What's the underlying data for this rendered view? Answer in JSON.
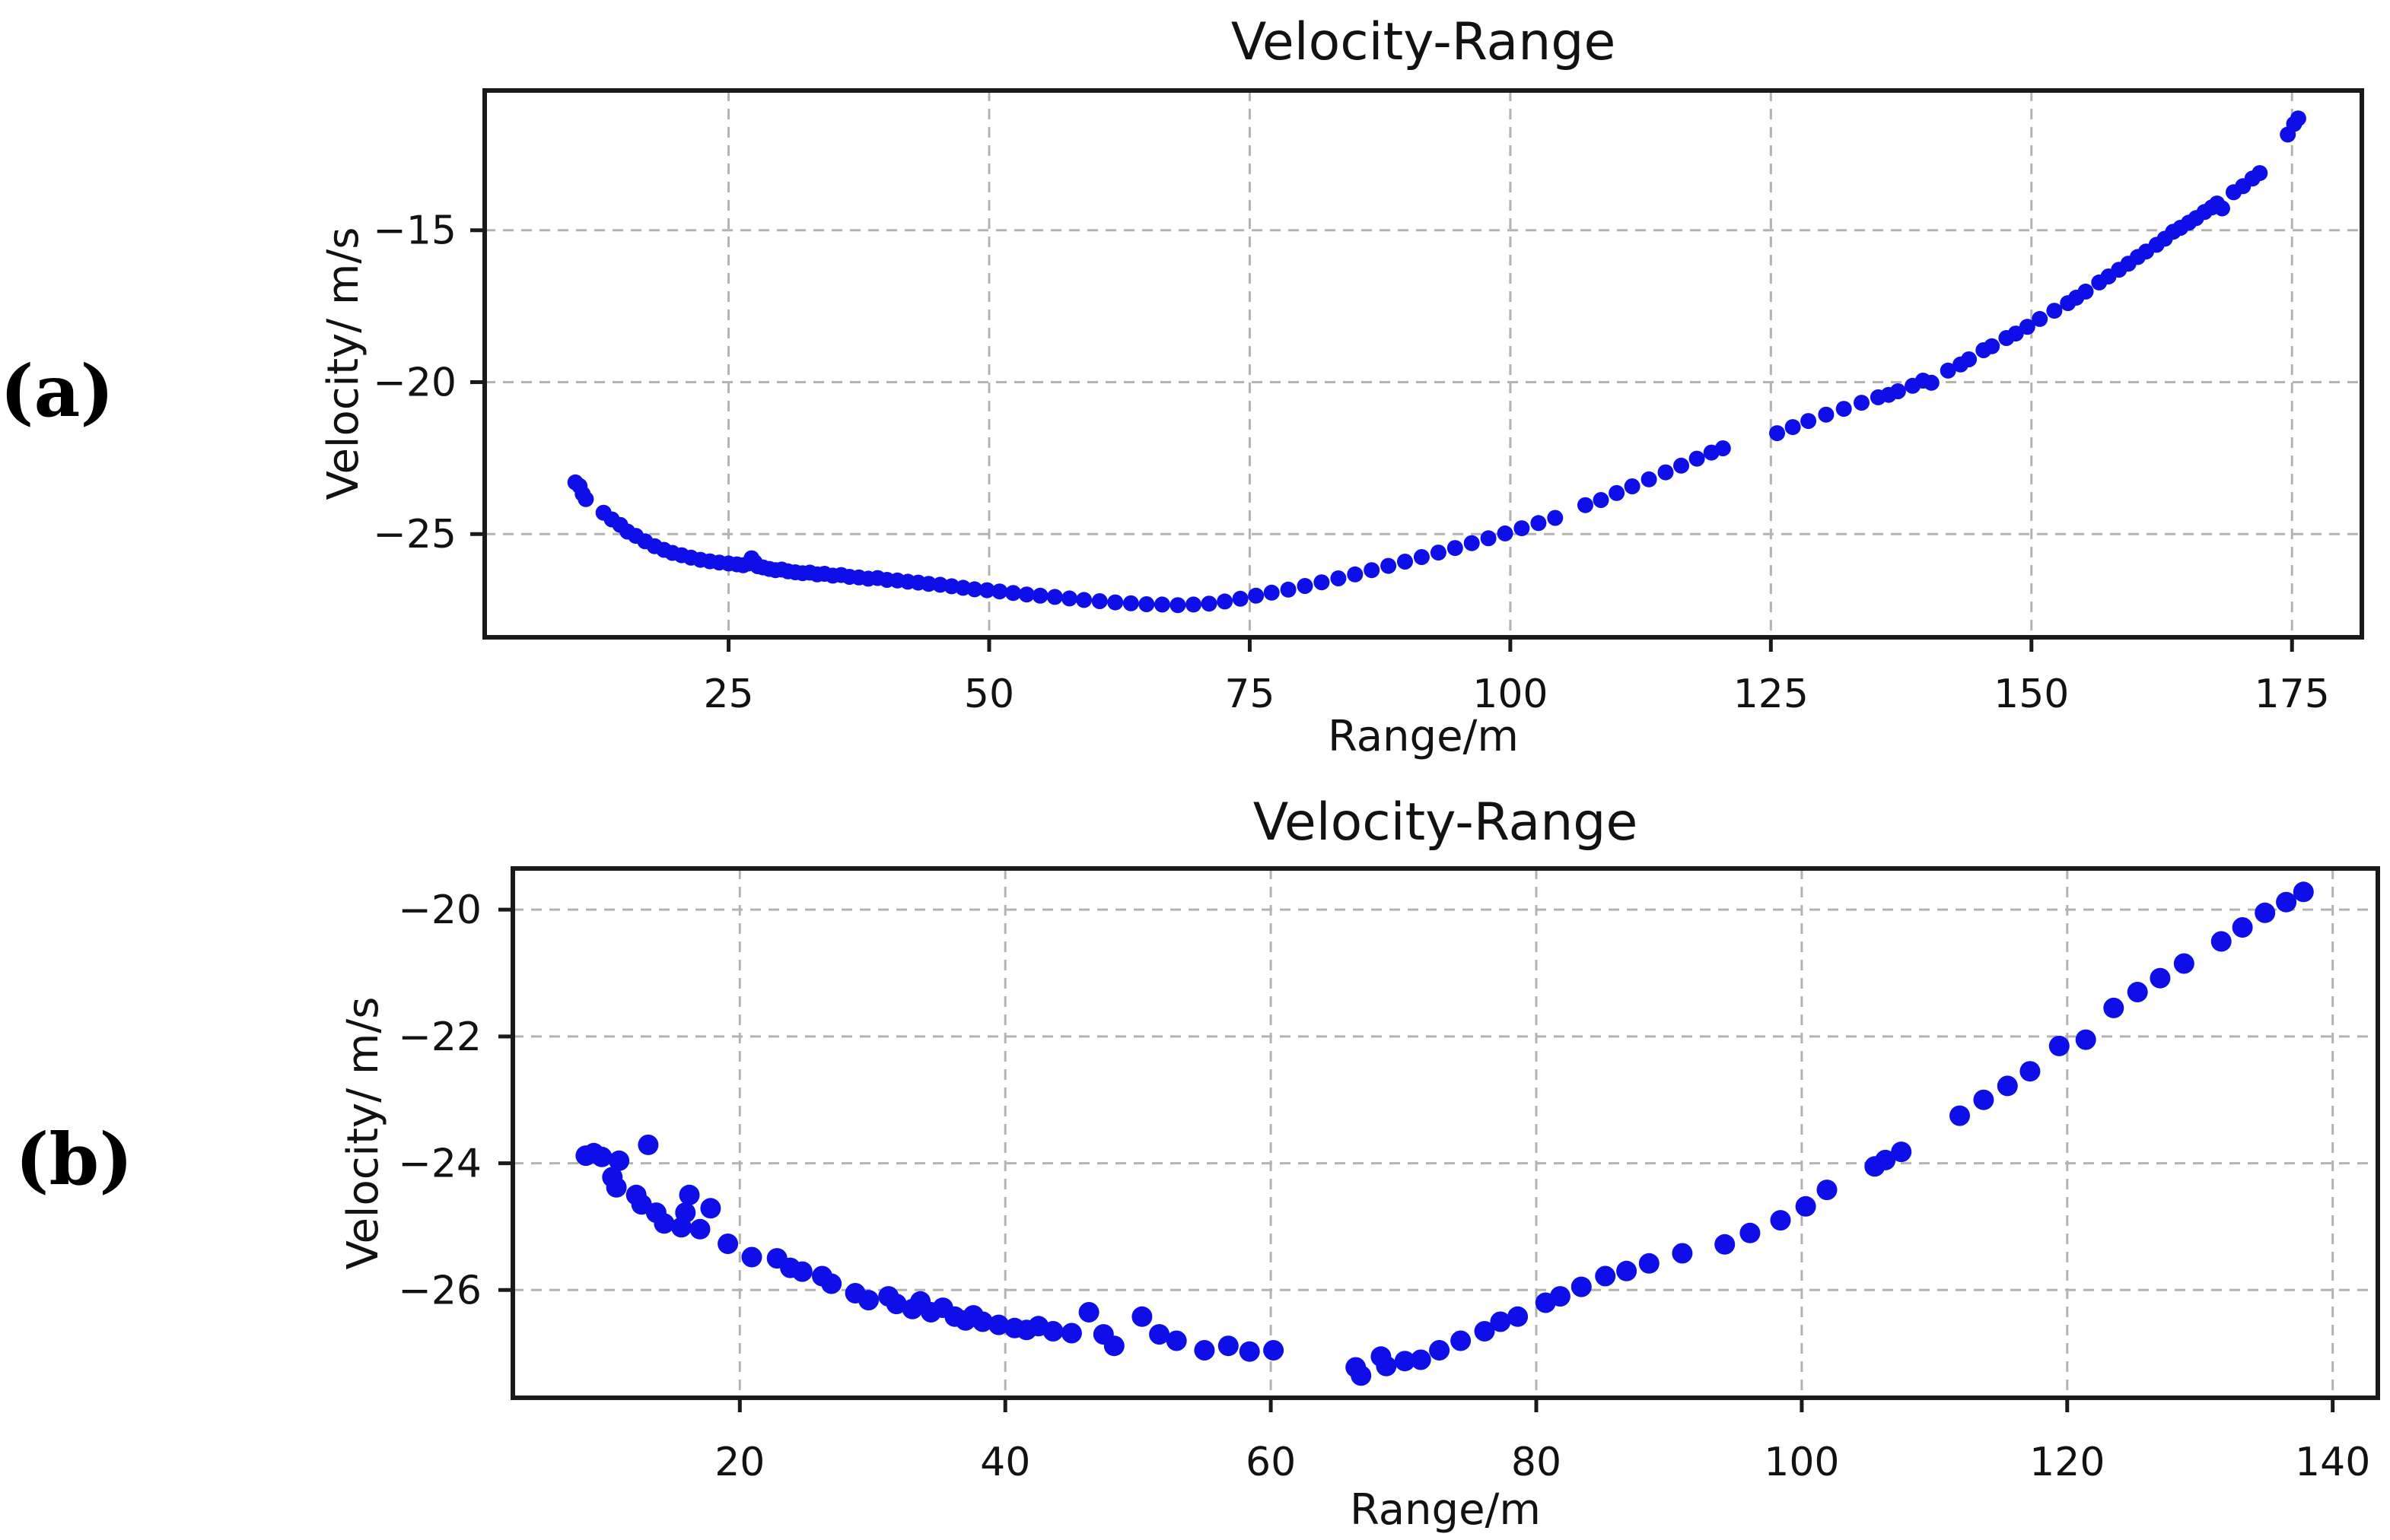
{
  "figure": {
    "background": "#ffffff",
    "text_color": "#121212",
    "marker_color": "#0e0ee8",
    "grid_color": "#b3b3b3",
    "spine_color": "#1a1a1a"
  },
  "panels": [
    {
      "label": "(a)"
    },
    {
      "label": "(b)"
    }
  ],
  "chart_data": [
    {
      "type": "scatter",
      "title": "Velocity-Range",
      "xlabel": "Range/m",
      "ylabel": "Velocity/ m/s",
      "legend": "none",
      "grid": true,
      "marker": "circle",
      "marker_color": "#0e0ee8",
      "xlim": [
        1.6,
        181.7
      ],
      "ylim": [
        -28.4,
        -10.4
      ],
      "x_ticks": [
        25,
        50,
        75,
        100,
        125,
        150,
        175
      ],
      "y_ticks": [
        -25,
        -20,
        -15
      ],
      "points": [
        [
          10.3,
          -23.3
        ],
        [
          10.7,
          -23.42
        ],
        [
          11.0,
          -23.68
        ],
        [
          11.3,
          -23.85
        ],
        [
          13.0,
          -24.3
        ],
        [
          13.8,
          -24.52
        ],
        [
          14.6,
          -24.7
        ],
        [
          15.3,
          -24.92
        ],
        [
          16.1,
          -25.06
        ],
        [
          17.0,
          -25.24
        ],
        [
          17.9,
          -25.4
        ],
        [
          18.8,
          -25.52
        ],
        [
          19.6,
          -25.62
        ],
        [
          20.5,
          -25.7
        ],
        [
          21.4,
          -25.78
        ],
        [
          22.3,
          -25.85
        ],
        [
          23.2,
          -25.9
        ],
        [
          24.1,
          -25.94
        ],
        [
          25.0,
          -25.97
        ],
        [
          25.8,
          -26.0
        ],
        [
          26.4,
          -26.03
        ],
        [
          26.9,
          -25.97
        ],
        [
          27.2,
          -25.8
        ],
        [
          27.5,
          -25.93
        ],
        [
          27.8,
          -26.06
        ],
        [
          28.3,
          -26.1
        ],
        [
          28.9,
          -26.15
        ],
        [
          29.5,
          -26.19
        ],
        [
          30.1,
          -26.17
        ],
        [
          30.7,
          -26.23
        ],
        [
          31.4,
          -26.26
        ],
        [
          32.1,
          -26.29
        ],
        [
          32.8,
          -26.27
        ],
        [
          33.5,
          -26.33
        ],
        [
          34.2,
          -26.31
        ],
        [
          35.0,
          -26.37
        ],
        [
          35.8,
          -26.35
        ],
        [
          36.6,
          -26.41
        ],
        [
          37.5,
          -26.43
        ],
        [
          38.4,
          -26.47
        ],
        [
          39.3,
          -26.45
        ],
        [
          40.2,
          -26.51
        ],
        [
          41.2,
          -26.53
        ],
        [
          42.2,
          -26.57
        ],
        [
          43.2,
          -26.6
        ],
        [
          44.2,
          -26.64
        ],
        [
          45.3,
          -26.67
        ],
        [
          46.4,
          -26.72
        ],
        [
          47.5,
          -26.77
        ],
        [
          48.6,
          -26.82
        ],
        [
          49.8,
          -26.85
        ],
        [
          51.0,
          -26.89
        ],
        [
          52.3,
          -26.94
        ],
        [
          53.6,
          -26.99
        ],
        [
          54.9,
          -27.03
        ],
        [
          56.3,
          -27.07
        ],
        [
          57.7,
          -27.12
        ],
        [
          59.1,
          -27.17
        ],
        [
          60.6,
          -27.21
        ],
        [
          62.1,
          -27.25
        ],
        [
          63.6,
          -27.28
        ],
        [
          65.1,
          -27.31
        ],
        [
          66.6,
          -27.32
        ],
        [
          68.1,
          -27.34
        ],
        [
          69.6,
          -27.32
        ],
        [
          71.1,
          -27.29
        ],
        [
          72.6,
          -27.22
        ],
        [
          74.1,
          -27.13
        ],
        [
          75.6,
          -27.03
        ],
        [
          77.1,
          -26.93
        ],
        [
          78.7,
          -26.83
        ],
        [
          80.3,
          -26.71
        ],
        [
          81.9,
          -26.59
        ],
        [
          83.5,
          -26.46
        ],
        [
          85.1,
          -26.33
        ],
        [
          86.7,
          -26.19
        ],
        [
          88.3,
          -26.05
        ],
        [
          89.9,
          -25.91
        ],
        [
          91.5,
          -25.76
        ],
        [
          93.1,
          -25.61
        ],
        [
          94.7,
          -25.46
        ],
        [
          96.3,
          -25.3
        ],
        [
          97.9,
          -25.14
        ],
        [
          99.5,
          -24.98
        ],
        [
          101.1,
          -24.81
        ],
        [
          102.7,
          -24.64
        ],
        [
          104.3,
          -24.47
        ],
        [
          107.2,
          -24.05
        ],
        [
          108.7,
          -23.88
        ],
        [
          110.2,
          -23.65
        ],
        [
          111.7,
          -23.43
        ],
        [
          113.3,
          -23.2
        ],
        [
          114.9,
          -22.97
        ],
        [
          116.4,
          -22.75
        ],
        [
          117.9,
          -22.52
        ],
        [
          119.3,
          -22.32
        ],
        [
          120.4,
          -22.18
        ],
        [
          125.6,
          -21.68
        ],
        [
          127.1,
          -21.48
        ],
        [
          128.6,
          -21.28
        ],
        [
          130.3,
          -21.07
        ],
        [
          132.0,
          -20.88
        ],
        [
          133.7,
          -20.68
        ],
        [
          135.3,
          -20.5
        ],
        [
          136.3,
          -20.42
        ],
        [
          137.2,
          -20.3
        ],
        [
          138.6,
          -20.12
        ],
        [
          139.6,
          -19.95
        ],
        [
          140.4,
          -20.02
        ],
        [
          142.0,
          -19.62
        ],
        [
          143.2,
          -19.42
        ],
        [
          144.0,
          -19.25
        ],
        [
          145.4,
          -18.95
        ],
        [
          146.2,
          -18.82
        ],
        [
          147.6,
          -18.55
        ],
        [
          148.5,
          -18.4
        ],
        [
          149.6,
          -18.18
        ],
        [
          150.8,
          -17.92
        ],
        [
          152.2,
          -17.65
        ],
        [
          153.5,
          -17.4
        ],
        [
          154.3,
          -17.22
        ],
        [
          155.2,
          -17.02
        ],
        [
          156.5,
          -16.72
        ],
        [
          157.4,
          -16.52
        ],
        [
          158.4,
          -16.3
        ],
        [
          159.3,
          -16.1
        ],
        [
          160.2,
          -15.88
        ],
        [
          161.0,
          -15.7
        ],
        [
          162.0,
          -15.48
        ],
        [
          162.8,
          -15.28
        ],
        [
          163.6,
          -15.05
        ],
        [
          164.3,
          -14.92
        ],
        [
          165.1,
          -14.75
        ],
        [
          165.8,
          -14.6
        ],
        [
          166.6,
          -14.4
        ],
        [
          167.3,
          -14.25
        ],
        [
          167.8,
          -14.12
        ],
        [
          168.3,
          -14.28
        ],
        [
          169.4,
          -13.75
        ],
        [
          170.3,
          -13.55
        ],
        [
          171.2,
          -13.3
        ],
        [
          171.9,
          -13.12
        ],
        [
          174.6,
          -11.85
        ],
        [
          175.2,
          -11.5
        ],
        [
          175.6,
          -11.32
        ]
      ]
    },
    {
      "type": "scatter",
      "title": "Velocity-Range",
      "xlabel": "Range/m",
      "ylabel": "Velocity/ m/s",
      "legend": "none",
      "grid": true,
      "marker": "circle",
      "marker_color": "#0e0ee8",
      "xlim": [
        2.9,
        143.4
      ],
      "ylim": [
        -27.7,
        -19.35
      ],
      "x_ticks": [
        20,
        40,
        60,
        80,
        100,
        120,
        140
      ],
      "y_ticks": [
        -26,
        -24,
        -22,
        -20
      ],
      "points": [
        [
          8.4,
          -23.88
        ],
        [
          9.0,
          -23.84
        ],
        [
          9.6,
          -23.9
        ],
        [
          10.9,
          -23.96
        ],
        [
          10.4,
          -24.22
        ],
        [
          10.7,
          -24.38
        ],
        [
          12.2,
          -24.5
        ],
        [
          12.6,
          -24.65
        ],
        [
          13.1,
          -23.71
        ],
        [
          13.7,
          -24.78
        ],
        [
          14.3,
          -24.95
        ],
        [
          15.6,
          -25.01
        ],
        [
          15.9,
          -24.78
        ],
        [
          16.2,
          -24.5
        ],
        [
          17.0,
          -25.04
        ],
        [
          17.8,
          -24.71
        ],
        [
          19.1,
          -25.27
        ],
        [
          20.9,
          -25.48
        ],
        [
          22.8,
          -25.5
        ],
        [
          23.8,
          -25.65
        ],
        [
          24.7,
          -25.71
        ],
        [
          26.2,
          -25.78
        ],
        [
          26.9,
          -25.9
        ],
        [
          28.7,
          -26.05
        ],
        [
          29.7,
          -26.16
        ],
        [
          31.2,
          -26.1
        ],
        [
          31.8,
          -26.22
        ],
        [
          33.0,
          -26.3
        ],
        [
          33.6,
          -26.18
        ],
        [
          34.4,
          -26.35
        ],
        [
          35.3,
          -26.28
        ],
        [
          36.2,
          -26.42
        ],
        [
          37.0,
          -26.48
        ],
        [
          37.6,
          -26.4
        ],
        [
          38.3,
          -26.5
        ],
        [
          39.5,
          -26.55
        ],
        [
          40.7,
          -26.6
        ],
        [
          41.6,
          -26.63
        ],
        [
          42.5,
          -26.57
        ],
        [
          43.6,
          -26.65
        ],
        [
          45.0,
          -26.68
        ],
        [
          46.3,
          -26.35
        ],
        [
          47.4,
          -26.7
        ],
        [
          48.2,
          -26.88
        ],
        [
          50.3,
          -26.42
        ],
        [
          51.6,
          -26.7
        ],
        [
          52.9,
          -26.8
        ],
        [
          55.0,
          -26.95
        ],
        [
          56.8,
          -26.88
        ],
        [
          58.4,
          -26.97
        ],
        [
          60.2,
          -26.95
        ],
        [
          66.4,
          -27.22
        ],
        [
          66.8,
          -27.35
        ],
        [
          68.3,
          -27.05
        ],
        [
          68.7,
          -27.2
        ],
        [
          70.1,
          -27.12
        ],
        [
          71.3,
          -27.1
        ],
        [
          72.7,
          -26.95
        ],
        [
          74.3,
          -26.8
        ],
        [
          76.1,
          -26.65
        ],
        [
          77.3,
          -26.5
        ],
        [
          78.6,
          -26.42
        ],
        [
          80.7,
          -26.2
        ],
        [
          81.8,
          -26.1
        ],
        [
          83.4,
          -25.95
        ],
        [
          85.2,
          -25.78
        ],
        [
          86.8,
          -25.7
        ],
        [
          88.5,
          -25.58
        ],
        [
          91.0,
          -25.42
        ],
        [
          94.2,
          -25.28
        ],
        [
          96.1,
          -25.1
        ],
        [
          98.4,
          -24.9
        ],
        [
          100.3,
          -24.68
        ],
        [
          101.9,
          -24.42
        ],
        [
          105.5,
          -24.05
        ],
        [
          106.3,
          -23.95
        ],
        [
          107.5,
          -23.82
        ],
        [
          111.9,
          -23.25
        ],
        [
          113.7,
          -23.0
        ],
        [
          115.5,
          -22.78
        ],
        [
          117.2,
          -22.55
        ],
        [
          119.4,
          -22.15
        ],
        [
          121.4,
          -22.05
        ],
        [
          123.5,
          -21.55
        ],
        [
          125.3,
          -21.3
        ],
        [
          127.0,
          -21.08
        ],
        [
          128.8,
          -20.85
        ],
        [
          131.6,
          -20.5
        ],
        [
          133.2,
          -20.28
        ],
        [
          134.9,
          -20.05
        ],
        [
          136.5,
          -19.88
        ],
        [
          137.8,
          -19.72
        ]
      ]
    }
  ]
}
